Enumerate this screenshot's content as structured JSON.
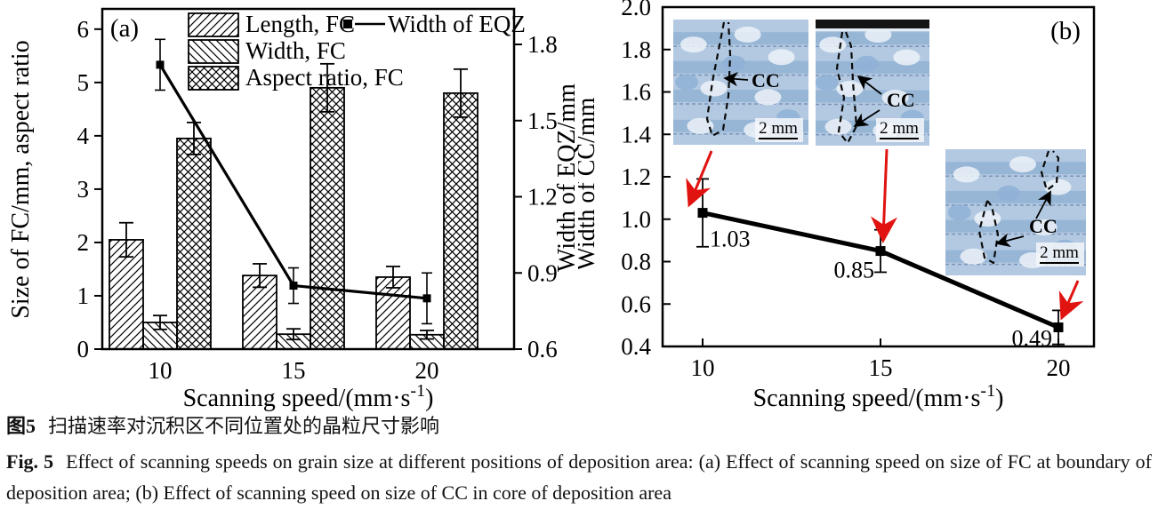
{
  "caption": {
    "cn_label": "图5",
    "cn_text": "扫描速率对沉积区不同位置处的晶粒尺寸影响",
    "en_label": "Fig. 5",
    "en_text": "Effect of scanning speeds on grain size at different positions of deposition area: (a) Effect of scanning speed on size of FC at boundary of deposition area; (b) Effect of scanning speed on size of CC in core of deposition area"
  },
  "colors": {
    "ink": "#000000",
    "background": "#ffffff",
    "red_arrow": "#e01310",
    "micrograph_blue": "#b3c9e2",
    "micrograph_band_blue": "#7fa6cc",
    "micrograph_light": "#ecf2f8",
    "micrograph_dark_band": "#151515"
  },
  "chart_data": [
    {
      "id": "a",
      "type": "bar",
      "panel_label": "(a)",
      "categories": [
        "10",
        "15",
        "20"
      ],
      "xlabel": "Scanning speed/(mm·s⁻¹)",
      "ylabel_left": "Size of FC/mm, aspect ratio",
      "ylabel_right": "Width of EQZ/mm",
      "ylim_left": [
        0,
        6.38
      ],
      "yticks_left": [
        "0",
        "1",
        "2",
        "3",
        "4",
        "5",
        "6"
      ],
      "ylim_right": [
        0.6,
        1.94
      ],
      "yticks_right": [
        "0.6",
        "0.9",
        "1.2",
        "1.5",
        "1.8"
      ],
      "grid": false,
      "legend_position": "top-inside",
      "bar_series": [
        {
          "name": "Length, FC",
          "hatch": "diagonal-up",
          "values": [
            2.05,
            1.38,
            1.35
          ],
          "errors": [
            0.32,
            0.22,
            0.2
          ]
        },
        {
          "name": "Width, FC",
          "hatch": "diagonal-down",
          "values": [
            0.5,
            0.28,
            0.27
          ],
          "errors": [
            0.13,
            0.1,
            0.08
          ]
        },
        {
          "name": "Aspect ratio, FC",
          "hatch": "crosshatch",
          "values": [
            3.95,
            4.9,
            4.8
          ],
          "errors": [
            0.3,
            0.45,
            0.45
          ]
        }
      ],
      "line_series": {
        "name": "Width of EQZ",
        "axis": "right",
        "marker": "filled-square",
        "values": [
          1.72,
          0.85,
          0.8
        ],
        "errors": [
          0.1,
          0.07,
          0.1
        ]
      }
    },
    {
      "id": "b",
      "type": "line",
      "panel_label": "(b)",
      "x": [
        "10",
        "15",
        "20"
      ],
      "values": [
        1.03,
        0.85,
        0.49
      ],
      "errors": [
        0.16,
        0.1,
        0.08
      ],
      "point_labels": [
        "1.03",
        "0.85",
        "0.49"
      ],
      "marker": "filled-square",
      "xlabel": "Scanning speed/(mm·s⁻¹)",
      "ylabel": "Width of CC/mm",
      "ylim": [
        0.4,
        2.0
      ],
      "yticks": [
        "0.4",
        "0.6",
        "0.8",
        "1.0",
        "1.2",
        "1.4",
        "1.6",
        "1.8",
        "2.0"
      ],
      "grid": false,
      "insets": [
        {
          "target": "10",
          "cc_label": "CC",
          "scale_label": "2 mm",
          "description": "optical micrograph of columnar crystals at 10 mm/s"
        },
        {
          "target": "15",
          "cc_label": "CC",
          "scale_label": "2 mm",
          "description": "optical micrograph of columnar crystals at 15 mm/s"
        },
        {
          "target": "20",
          "cc_label": "CC",
          "scale_label": "2 mm",
          "description": "optical micrograph of columnar crystals at 20 mm/s"
        }
      ]
    }
  ]
}
